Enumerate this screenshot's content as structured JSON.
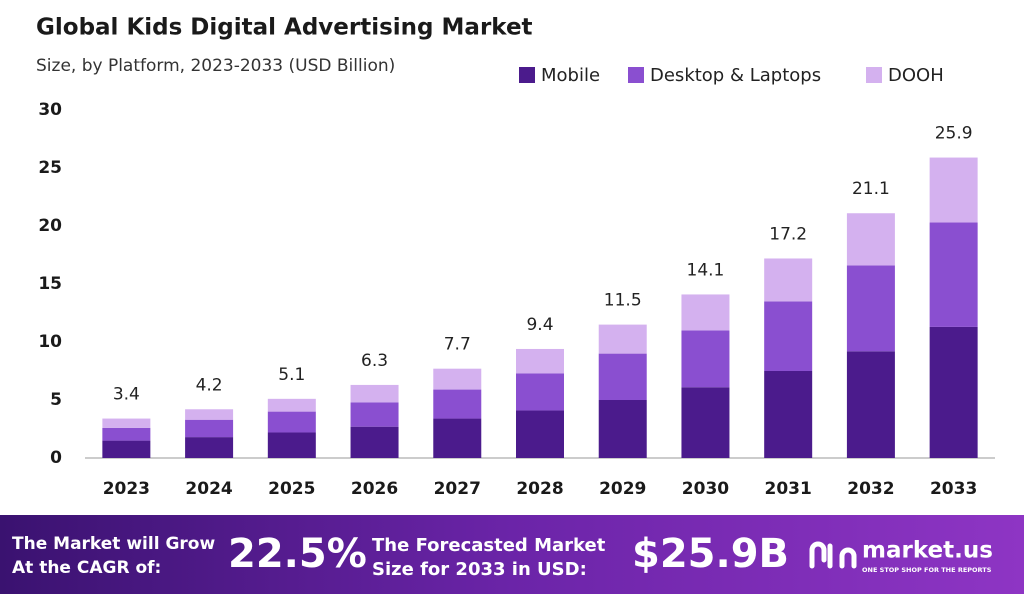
{
  "chart_data": {
    "type": "stacked_bar",
    "title": "Global Kids Digital Advertising Market",
    "subtitle": "Size, by Platform, 2023-2033 (USD Billion)",
    "categories": [
      "2023",
      "2024",
      "2025",
      "2026",
      "2027",
      "2028",
      "2029",
      "2030",
      "2031",
      "2032",
      "2033"
    ],
    "series": [
      {
        "name": "Mobile",
        "color": "#4b1b8c",
        "values": [
          1.5,
          1.8,
          2.2,
          2.7,
          3.4,
          4.1,
          5.0,
          6.1,
          7.5,
          9.2,
          11.3
        ]
      },
      {
        "name": "Desktop & Laptops",
        "color": "#8a4fd0",
        "values": [
          1.1,
          1.5,
          1.8,
          2.1,
          2.5,
          3.2,
          4.0,
          4.9,
          6.0,
          7.4,
          9.0
        ]
      },
      {
        "name": "DOOH",
        "color": "#d4b1ef",
        "values": [
          0.8,
          0.9,
          1.1,
          1.5,
          1.8,
          2.1,
          2.5,
          3.1,
          3.7,
          4.5,
          5.6
        ]
      }
    ],
    "totals": [
      3.4,
      4.2,
      5.1,
      6.3,
      7.7,
      9.4,
      11.5,
      14.1,
      17.2,
      21.1,
      25.9
    ],
    "ylim": [
      0,
      30
    ],
    "yticks": [
      0,
      5,
      10,
      15,
      20,
      25,
      30
    ],
    "grid": false,
    "legend": "top-right"
  },
  "footer": {
    "cagr_label": [
      "The Market will Grow",
      "At the CAGR of:"
    ],
    "cagr": "22.5%",
    "forecast_label": [
      "The Forecasted Market",
      "Size for 2033 in USD:"
    ],
    "forecast": "$25.9B",
    "brand": "market.us",
    "tagline": "ONE STOP SHOP FOR THE REPORTS"
  }
}
